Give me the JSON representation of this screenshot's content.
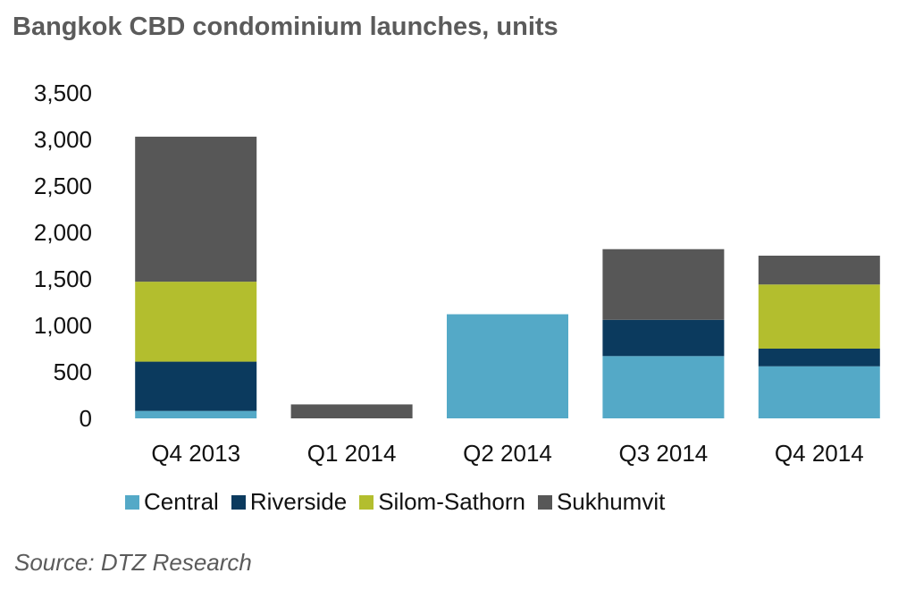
{
  "chart_data": {
    "type": "bar",
    "stacked": true,
    "title": "Bangkok CBD condominium launches, units",
    "xlabel": "",
    "ylabel": "",
    "categories": [
      "Q4 2013",
      "Q1 2014",
      "Q2 2014",
      "Q3 2014",
      "Q4 2014"
    ],
    "ylim": [
      0,
      3500
    ],
    "yticks": [
      0,
      500,
      1000,
      1500,
      2000,
      2500,
      3000,
      3500
    ],
    "ytick_labels": [
      "0",
      "500",
      "1,000",
      "1,500",
      "2,000",
      "2,500",
      "3,000",
      "3,500"
    ],
    "grid": false,
    "legend_position": "bottom",
    "series": [
      {
        "name": "Central",
        "color": "#54a9c7",
        "values": [
          80,
          0,
          1120,
          670,
          560
        ]
      },
      {
        "name": "Riverside",
        "color": "#0b3a5e",
        "values": [
          530,
          0,
          0,
          390,
          190
        ]
      },
      {
        "name": "Silom-Sathorn",
        "color": "#b3be2e",
        "values": [
          860,
          0,
          0,
          0,
          690
        ]
      },
      {
        "name": "Sukhumvit",
        "color": "#575757",
        "values": [
          1560,
          150,
          0,
          760,
          310
        ]
      }
    ],
    "source": "Source: DTZ Research"
  }
}
